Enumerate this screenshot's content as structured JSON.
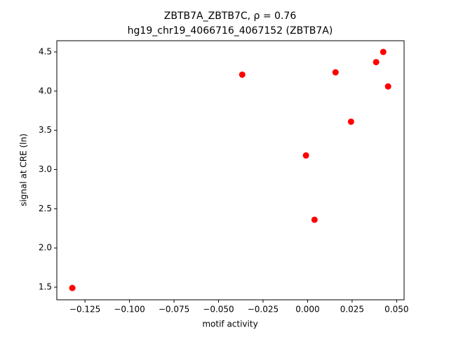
{
  "chart_data": {
    "type": "scatter",
    "title": "ZBTB7A_ZBTB7C, ρ = 0.76",
    "subtitle": "hg19_chr19_4066716_4067152 (ZBTB7A)",
    "x_label": "motif activity",
    "y_label": "signal at CRE (ln)",
    "color": "#ff0000",
    "x": [
      -0.1321,
      -0.0367,
      -0.0009,
      0.0039,
      0.0157,
      0.0244,
      0.0385,
      0.0425,
      0.0452
    ],
    "values": [
      1.49,
      4.21,
      3.18,
      2.36,
      4.24,
      3.61,
      4.37,
      4.5,
      4.06
    ],
    "xlim": [
      -0.1408,
      0.0542
    ],
    "ylim": [
      1.339,
      4.643
    ],
    "xticks": [
      {
        "value": -0.125,
        "label": "−0.125"
      },
      {
        "value": -0.1,
        "label": "−0.100"
      },
      {
        "value": -0.075,
        "label": "−0.075"
      },
      {
        "value": -0.05,
        "label": "−0.050"
      },
      {
        "value": -0.025,
        "label": "−0.025"
      },
      {
        "value": 0,
        "label": "0.000"
      },
      {
        "value": 0.025,
        "label": "0.025"
      },
      {
        "value": 0.05,
        "label": "0.050"
      }
    ],
    "yticks": [
      1.5,
      {
        "value": 2,
        "label": "2.0"
      },
      2.5,
      {
        "value": 3,
        "label": "3.0"
      },
      3.5,
      {
        "value": 4,
        "label": "4.0"
      },
      4.5
    ],
    "grid": false
  }
}
